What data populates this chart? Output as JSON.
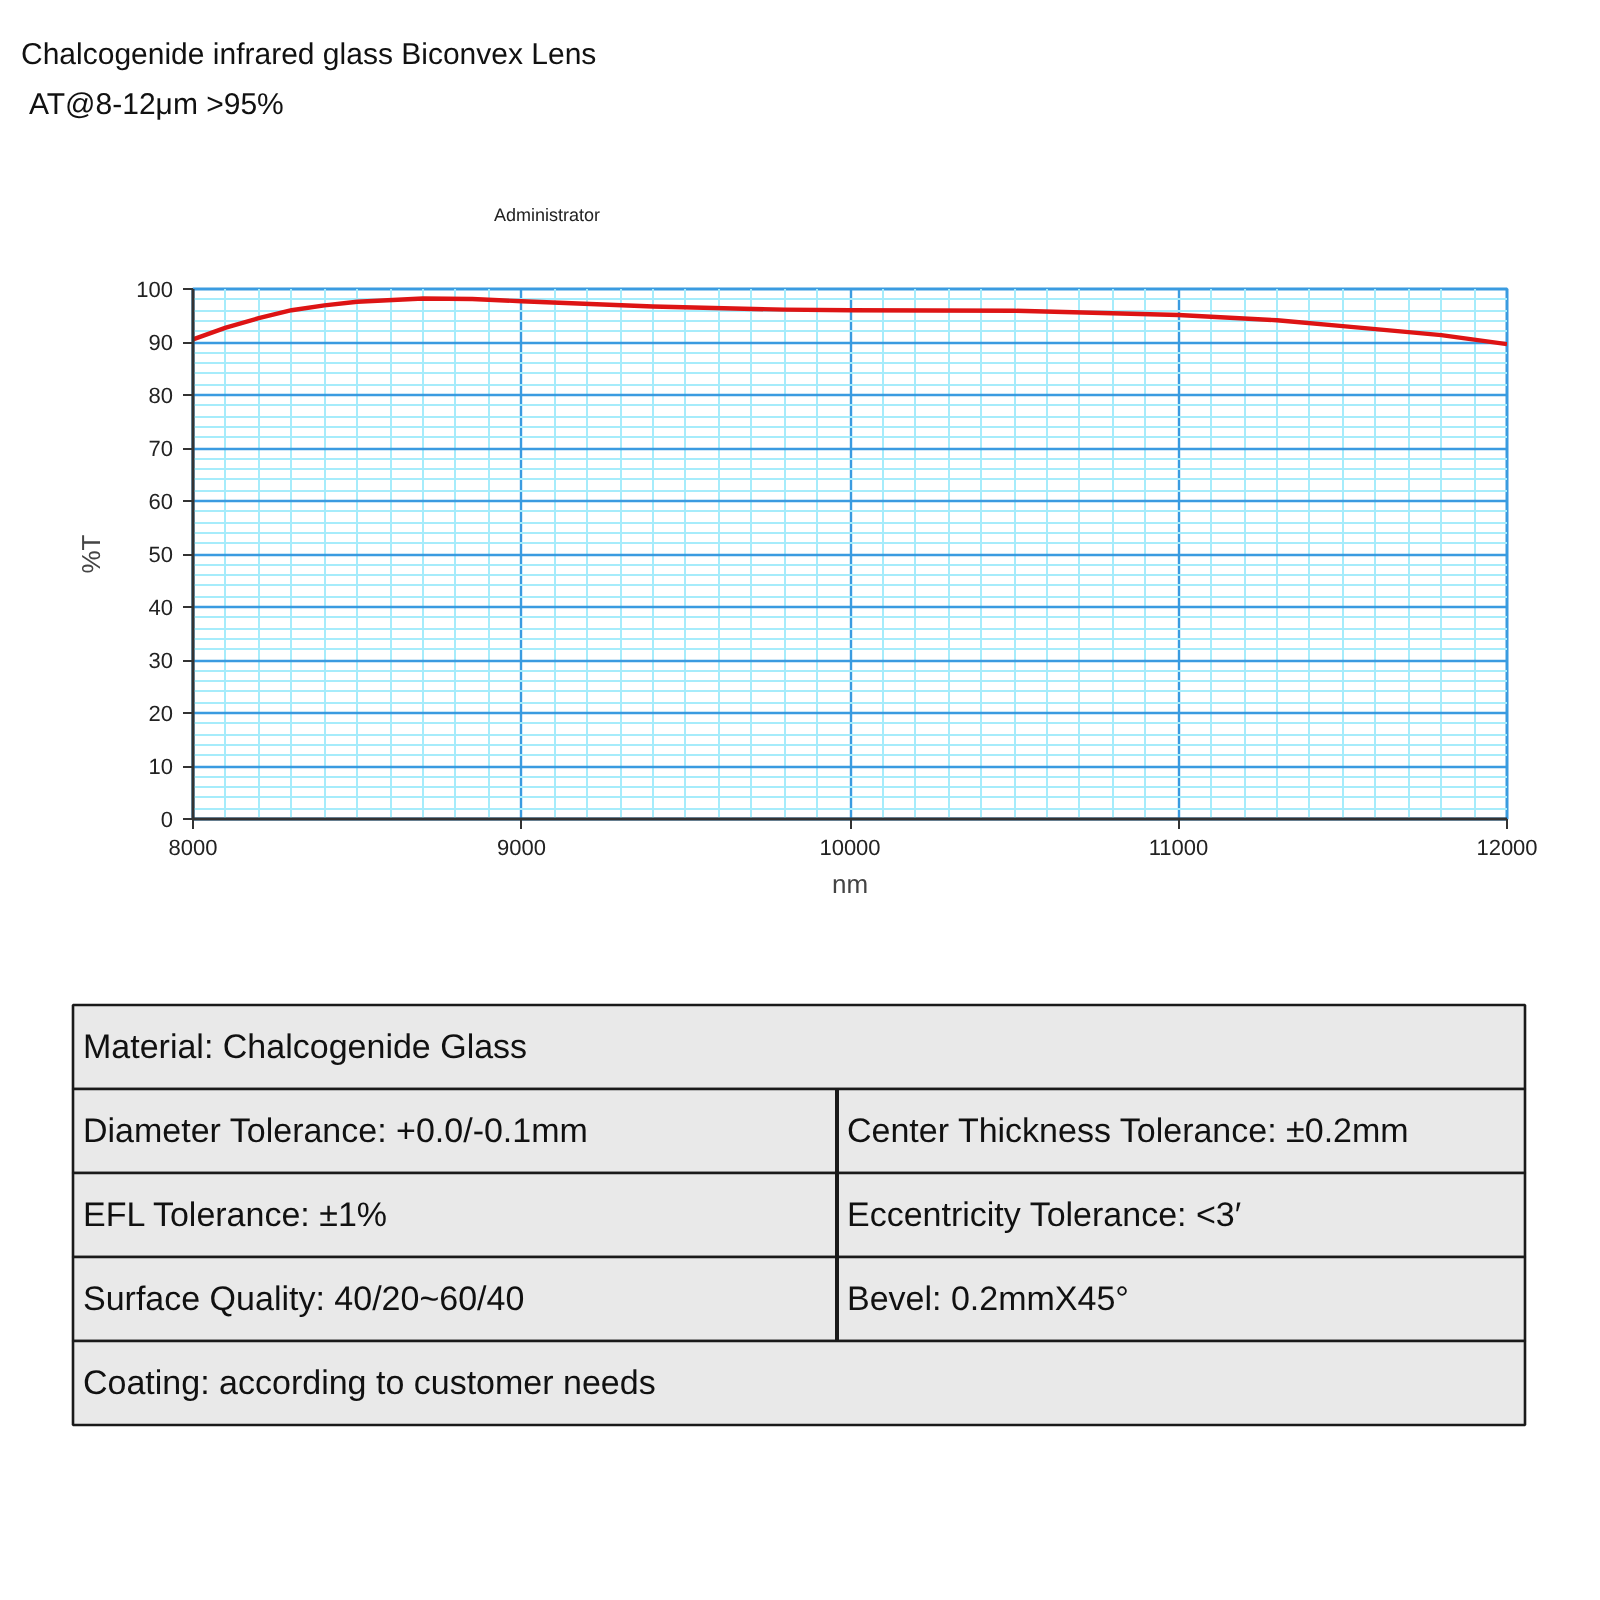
{
  "chart_data": {
    "type": "line",
    "title": "Chalcogenide infrared glass Biconvex Lens",
    "subtitle": "AT@8-12μm >95%",
    "xlabel": "nm",
    "ylabel": "%T",
    "x": [
      8000,
      8100,
      8200,
      8300,
      8400,
      8500,
      8700,
      8850,
      9000,
      9400,
      9800,
      10000,
      10500,
      11000,
      11300,
      11500,
      11800,
      12000
    ],
    "series": [
      {
        "color": "#dd1414",
        "values": [
          90.5,
          92.7,
          94.5,
          96.0,
          96.9,
          97.6,
          98.2,
          98.1,
          97.7,
          96.7,
          96.1,
          96.0,
          95.9,
          95.1,
          94.1,
          93.0,
          91.3,
          89.6
        ]
      }
    ],
    "xlim": [
      8000,
      12000
    ],
    "ylim": [
      0,
      100
    ],
    "xticks": [
      8000,
      9000,
      10000,
      11000,
      12000
    ],
    "yticks": [
      0,
      10,
      20,
      30,
      40,
      50,
      60,
      70,
      80,
      90,
      100
    ],
    "grid": true,
    "annotations": [
      "Administrator",
      "Material: Chalcogenide Glass",
      "Diameter Tolerance: +0.0/-0.1mm",
      "Center Thickness Tolerance: ±0.2mm",
      "EFL Tolerance: ±1%",
      "Eccentricity Tolerance: <3′",
      "Surface Quality: 40/20~60/40",
      "Bevel: 0.2mmX45°",
      "Coating: according to customer needs"
    ]
  }
}
